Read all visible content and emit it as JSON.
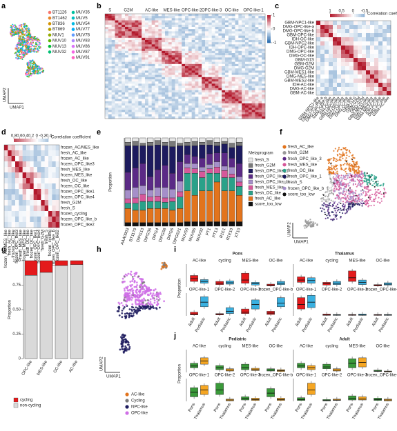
{
  "panels": {
    "a": {
      "letter": "a",
      "x_axis": "UMAP1",
      "y_axis": "UMAP2",
      "legend": [
        {
          "name": "BT1126",
          "color": "#f8766d"
        },
        {
          "name": "BT1462",
          "color": "#e88526"
        },
        {
          "name": "BT836",
          "color": "#d39200"
        },
        {
          "name": "BT869",
          "color": "#b79f00"
        },
        {
          "name": "MUV1",
          "color": "#93aa00"
        },
        {
          "name": "MUV10",
          "color": "#5eb300"
        },
        {
          "name": "MUV13",
          "color": "#00ba38"
        },
        {
          "name": "MUV32",
          "color": "#00bf74"
        },
        {
          "name": "MUV35",
          "color": "#00c19f"
        },
        {
          "name": "MUV5",
          "color": "#00bfc4"
        },
        {
          "name": "MUV54",
          "color": "#00b9e3"
        },
        {
          "name": "MUV77",
          "color": "#00adfa"
        },
        {
          "name": "MUV78",
          "color": "#619cff"
        },
        {
          "name": "MUV83",
          "color": "#ae87ff"
        },
        {
          "name": "MUV86",
          "color": "#db72fb"
        },
        {
          "name": "MUV87",
          "color": "#f564e3"
        },
        {
          "name": "MUV91",
          "color": "#ff61c3"
        }
      ]
    },
    "b": {
      "letter": "b",
      "column_labels": [
        "S",
        "G2M",
        "AC-like",
        "MES-like",
        "OPC-like-2",
        "OPC-like-3",
        "OC-like",
        "OPC-like-1"
      ],
      "colorbar_ticks": [
        1,
        0,
        -1
      ]
    },
    "c": {
      "letter": "c",
      "title": "Correlation coefficient",
      "colorbar_ticks": [
        1,
        0.5,
        0,
        -0.5
      ],
      "labels": [
        "GBM-NPC1-like",
        "DMG-OPC-like-a",
        "DMG-OPC-like-b",
        "GBM-OPC-like",
        "IDH-OC-like",
        "GBM-NPC2-like",
        "IDH-OPC-like",
        "DMG-OPC-like",
        "DMG-OC-like",
        "GBM-G1S",
        "GBM-G2M",
        "DMG-G2M",
        "GBM-MES1-like",
        "DMG-MES-like",
        "GBM-MES2-like",
        "IDH-AC-like",
        "DMG-AC-like",
        "GBM-AC-like"
      ]
    },
    "d": {
      "letter": "d",
      "title": "Correlation coefficient",
      "colorbar_ticks": [
        0.8,
        0.6,
        0.4,
        0.2,
        0,
        -0.2,
        -0.4
      ],
      "labels": [
        "frozen_AC/MES_like",
        "fresh_AC_like",
        "frozen_AC_like",
        "frozen_OPC_like3",
        "fresh_MES_like",
        "frozen_MES_like",
        "fresh_OC_like",
        "frozen_OC_like",
        "frozen_OPC_like1",
        "frozen_OPC_like4",
        "fresh_G2M",
        "fresh_S",
        "frozen_cycling",
        "frozen_OPC_like_b",
        "frozen_OPC_like2"
      ]
    },
    "e": {
      "letter": "e",
      "type": "bar",
      "y_axis": "Proportion",
      "legend_title": "Metaprogram",
      "ylim": [
        0,
        1
      ],
      "categories": [
        "AAA0903",
        "BT1179",
        "DIPG13",
        "DIPG36",
        "DIPG4",
        "DIPG58",
        "DIPG6",
        "DIPG621",
        "MUV50",
        "MUV86",
        "MUV92",
        "PT1",
        "PT13",
        "R1E1",
        "R1E10",
        "XT10"
      ],
      "series": [
        {
          "name": "fresh_S",
          "color": "#e8e8e8",
          "values": [
            0.05,
            0.04,
            0.06,
            0.05,
            0.03,
            0.05,
            0.04,
            0.06,
            0.05,
            0.04,
            0.05,
            0.03,
            0.05,
            0.04,
            0.06,
            0.05
          ]
        },
        {
          "name": "fresh_G2M",
          "color": "#7a7a7a",
          "values": [
            0.04,
            0.05,
            0.03,
            0.04,
            0.05,
            0.04,
            0.06,
            0.03,
            0.04,
            0.05,
            0.03,
            0.05,
            0.04,
            0.03,
            0.05,
            0.04
          ]
        },
        {
          "name": "fresh_OPC_like_1",
          "color": "#1d1b5e",
          "values": [
            0.3,
            0.25,
            0.2,
            0.35,
            0.28,
            0.22,
            0.3,
            0.18,
            0.1,
            0.12,
            0.15,
            0.1,
            0.08,
            0.1,
            0.12,
            0.2
          ]
        },
        {
          "name": "fresh_OPC_like_3",
          "color": "#5b2a86",
          "values": [
            0.2,
            0.22,
            0.25,
            0.15,
            0.2,
            0.25,
            0.18,
            0.22,
            0.1,
            0.08,
            0.1,
            0.12,
            0.1,
            0.15,
            0.1,
            0.15
          ]
        },
        {
          "name": "fresh_OPC_like_b",
          "color": "#a58fc9",
          "values": [
            0.1,
            0.12,
            0.1,
            0.08,
            0.1,
            0.12,
            0.1,
            0.12,
            0.05,
            0.06,
            0.05,
            0.05,
            0.06,
            0.05,
            0.08,
            0.06
          ]
        },
        {
          "name": "fresh_MES_like",
          "color": "#d6589a",
          "values": [
            0.05,
            0.06,
            0.08,
            0.05,
            0.06,
            0.05,
            0.04,
            0.06,
            0.06,
            0.05,
            0.07,
            0.05,
            0.07,
            0.08,
            0.04,
            0.05
          ]
        },
        {
          "name": "fresh_OC_like",
          "color": "#2aa189",
          "values": [
            0.06,
            0.08,
            0.1,
            0.08,
            0.08,
            0.07,
            0.1,
            0.13,
            0.2,
            0.25,
            0.15,
            0.2,
            0.1,
            0.15,
            0.15,
            0.1
          ]
        },
        {
          "name": "fresh_AC_like",
          "color": "#e2741d",
          "values": [
            0.16,
            0.14,
            0.14,
            0.16,
            0.16,
            0.16,
            0.14,
            0.16,
            0.35,
            0.3,
            0.35,
            0.35,
            0.45,
            0.35,
            0.35,
            0.3
          ]
        },
        {
          "name": "score_too_low",
          "color": "#111111",
          "values": [
            0.04,
            0.04,
            0.04,
            0.04,
            0.04,
            0.04,
            0.04,
            0.04,
            0.05,
            0.05,
            0.05,
            0.05,
            0.05,
            0.05,
            0.05,
            0.05
          ]
        }
      ]
    },
    "f": {
      "letter": "f",
      "x_axis": "UMAP1",
      "y_axis": "UMAP2",
      "legend": [
        {
          "name": "fresh_AC_like",
          "color": "#e2741d"
        },
        {
          "name": "fresh_G2M",
          "color": "#9a9a9a"
        },
        {
          "name": "fresh_OPC_like_3",
          "color": "#5b2a86"
        },
        {
          "name": "fresh_MES_like",
          "color": "#d6589a"
        },
        {
          "name": "fresh_OC_like",
          "color": "#2aa189"
        },
        {
          "name": "fresh_OPC_like_1",
          "color": "#1d1b5e"
        },
        {
          "name": "fresh_S",
          "color": "#cfcfcf"
        },
        {
          "name": "frozen_OPC_like_b",
          "color": "#a58fc9"
        },
        {
          "name": "score_too_low",
          "color": "#111111"
        }
      ]
    },
    "g": {
      "letter": "g",
      "type": "bar",
      "y_axis": "Proportion",
      "ylim": [
        0,
        1
      ],
      "yticks": [
        0,
        {
          "value": 0.25,
          "label": "0.25"
        },
        {
          "value": 0.5,
          "label": "0.50"
        },
        {
          "value": 0.75,
          "label": "0.75"
        },
        {
          "value": 1,
          "label": "1.00"
        }
      ],
      "categories": [
        "OPC-like",
        "MES-like",
        "OC-like",
        "AC-like"
      ],
      "series": [
        {
          "name": "cycling",
          "color": "#e41a1c",
          "values": [
            0.15,
            0.12,
            0.05,
            0.04
          ]
        },
        {
          "name": "non-cycling",
          "color": "#d9d9d9",
          "values": [
            0.85,
            0.88,
            0.95,
            0.96
          ]
        }
      ]
    },
    "h": {
      "letter": "h",
      "x_axis": "UMAP1",
      "y_axis": "UMAP2",
      "legend": [
        {
          "name": "AC-like",
          "color": "#e2741d"
        },
        {
          "name": "Cycling",
          "color": "#7a7a7a"
        },
        {
          "name": "NPC-like",
          "color": "#1d1b5e"
        },
        {
          "name": "OPC-like",
          "color": "#cf6fe6"
        }
      ]
    },
    "i": {
      "letter": "i",
      "y_axis": "Proportion",
      "ylim": [
        0,
        0.5
      ],
      "x_labels": [
        "Adult",
        "Pediatric"
      ],
      "colors": [
        "#e41a1c",
        "#3ab0e0"
      ],
      "groups": [
        {
          "title": "Pons",
          "top_labels": [
            "AC-like",
            "cycling",
            "MES-like",
            "OC-like"
          ],
          "bottom_labels": [
            "OPC-like-1",
            "OPC-like-2",
            "OPC-like-3",
            "frozen_OPC-like-b"
          ],
          "top": [
            [
              0.12,
              0.18,
              0.25
            ],
            [
              0.08,
              0.12,
              0.16
            ],
            [
              0.05,
              0.08,
              0.12
            ],
            [
              0.06,
              0.09,
              0.13
            ],
            [
              0.08,
              0.15,
              0.3
            ],
            [
              0.04,
              0.07,
              0.1
            ],
            [
              0.02,
              0.04,
              0.06
            ],
            [
              0.05,
              0.08,
              0.12
            ]
          ],
          "bottom": [
            [
              0.02,
              0.04,
              0.08
            ],
            [
              0.2,
              0.3,
              0.42
            ],
            [
              0.02,
              0.03,
              0.05
            ],
            [
              0.05,
              0.1,
              0.18
            ],
            [
              0.05,
              0.08,
              0.15
            ],
            [
              0.15,
              0.25,
              0.35
            ],
            [
              0.03,
              0.06,
              0.1
            ],
            [
              0.2,
              0.28,
              0.4
            ]
          ]
        },
        {
          "title": "Thalamus",
          "top_labels": [
            "AC-like",
            "cycling",
            "MES-like",
            "OC-like"
          ],
          "bottom_labels": [
            "OPC-like-1",
            "OPC-like-2",
            "OPC-like-3",
            "frozen_OPC-like-b"
          ],
          "top": [
            [
              0.1,
              0.15,
              0.22
            ],
            [
              0.08,
              0.14,
              0.2
            ],
            [
              0.04,
              0.07,
              0.1
            ],
            [
              0.05,
              0.08,
              0.12
            ],
            [
              0.12,
              0.2,
              0.35
            ],
            [
              0.05,
              0.1,
              0.15
            ],
            [
              0.02,
              0.03,
              0.05
            ],
            [
              0.04,
              0.06,
              0.09
            ]
          ],
          "bottom": [
            [
              0.15,
              0.25,
              0.4
            ],
            [
              0.18,
              0.3,
              0.45
            ],
            [
              0.01,
              0.02,
              0.04
            ],
            [
              0.01,
              0.02,
              0.03
            ],
            [
              0.01,
              0.02,
              0.03
            ],
            [
              0.01,
              0.02,
              0.04
            ],
            [
              0.01,
              0.02,
              0.03
            ],
            [
              0.01,
              0.02,
              0.03
            ]
          ]
        }
      ]
    },
    "j": {
      "letter": "j",
      "y_axis": "Proportion",
      "ylim": [
        0,
        0.5
      ],
      "x_labels": [
        "Pons",
        "Thalamus"
      ],
      "colors": [
        "#3a9a3a",
        "#f5a623"
      ],
      "groups": [
        {
          "title": "Pediatric",
          "top_labels": [
            "AC-like",
            "cycling",
            "MES-like",
            "OC-like"
          ],
          "bottom_labels": [
            "OPC-like-1",
            "OPC-like-2",
            "OPC-like-3",
            "frozen_OPC-like-b"
          ],
          "top": [
            [
              0.1,
              0.14,
              0.2
            ],
            [
              0.18,
              0.25,
              0.32
            ],
            [
              0.06,
              0.1,
              0.15
            ],
            [
              0.03,
              0.05,
              0.08
            ],
            [
              0.06,
              0.1,
              0.18
            ],
            [
              0.04,
              0.06,
              0.09
            ],
            [
              0.03,
              0.05,
              0.08
            ],
            [
              0.02,
              0.04,
              0.06
            ]
          ],
          "bottom": [
            [
              0.1,
              0.2,
              0.3
            ],
            [
              0.15,
              0.25,
              0.35
            ],
            [
              0.15,
              0.25,
              0.4
            ],
            [
              0.01,
              0.03,
              0.05
            ],
            [
              0.03,
              0.06,
              0.1
            ],
            [
              0.02,
              0.04,
              0.07
            ],
            [
              0.1,
              0.18,
              0.28
            ],
            [
              0.02,
              0.04,
              0.07
            ]
          ]
        },
        {
          "title": "Adult",
          "top_labels": [
            "AC-like",
            "cycling",
            "MES-like",
            "OC-like"
          ],
          "bottom_labels": [
            "OPC-like-1",
            "OPC-like-2",
            "OPC-like-3",
            "frozen_OPC-like-b"
          ],
          "top": [
            [
              0.1,
              0.14,
              0.2
            ],
            [
              0.06,
              0.1,
              0.15
            ],
            [
              0.08,
              0.12,
              0.18
            ],
            [
              0.03,
              0.05,
              0.08
            ],
            [
              0.1,
              0.2,
              0.3
            ],
            [
              0.12,
              0.22,
              0.32
            ],
            [
              0.02,
              0.03,
              0.05
            ],
            [
              0.01,
              0.02,
              0.03
            ]
          ],
          "bottom": [
            [
              0.02,
              0.04,
              0.08
            ],
            [
              0.15,
              0.25,
              0.4
            ],
            [
              0.01,
              0.02,
              0.04
            ],
            [
              0.02,
              0.03,
              0.05
            ],
            [
              0.03,
              0.06,
              0.12
            ],
            [
              0.03,
              0.05,
              0.1
            ],
            [
              0.02,
              0.04,
              0.07
            ],
            [
              0.01,
              0.03,
              0.05
            ]
          ]
        }
      ]
    }
  }
}
